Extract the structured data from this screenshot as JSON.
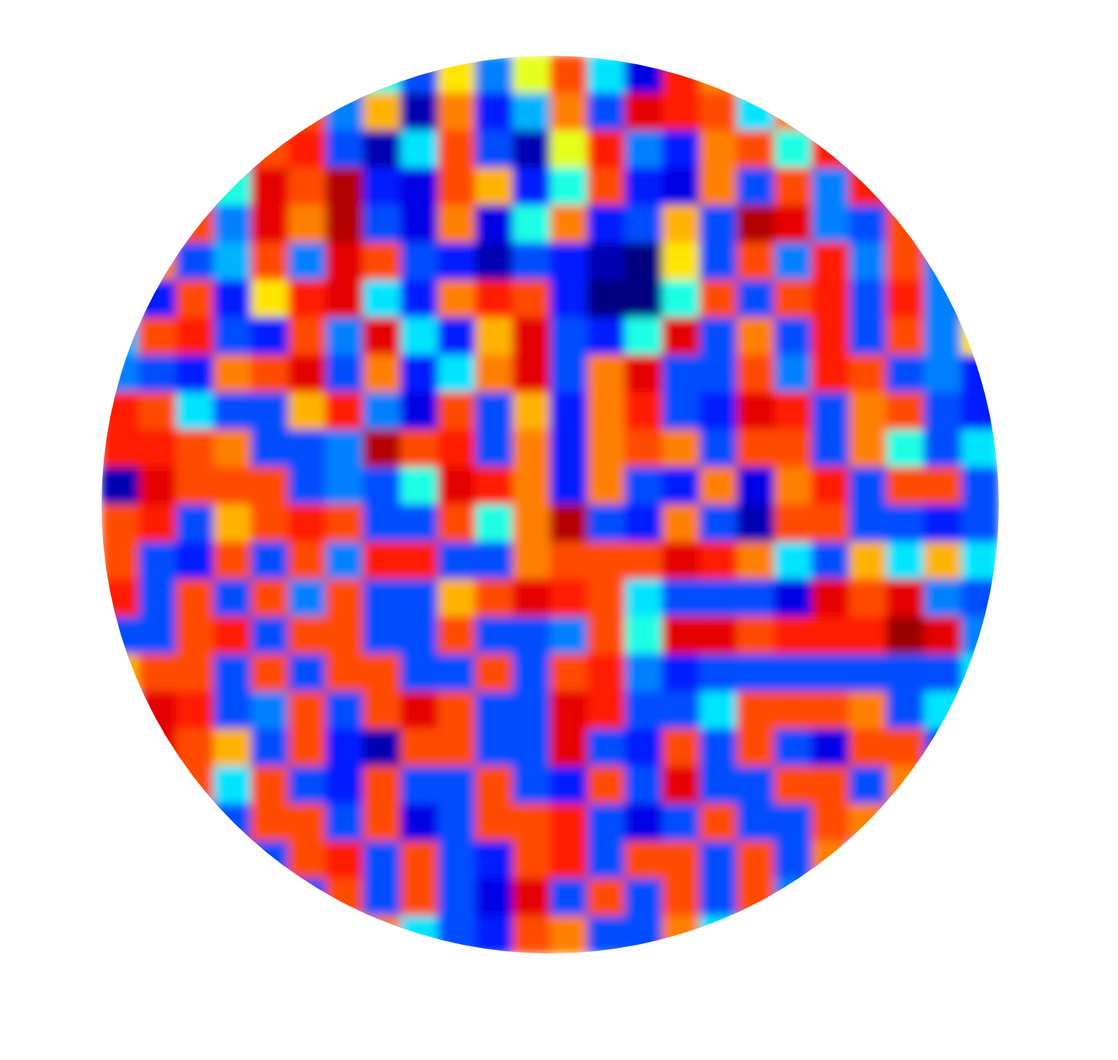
{
  "chart_data": {
    "type": "heatmap",
    "color": "jet",
    "zlim": [
      -1,
      1
    ],
    "cells": [
      [
        null,
        null,
        null,
        null,
        null,
        null,
        0.8,
        -0.2,
        -0.6,
        0.3,
        -0.5,
        0.2,
        0.6,
        -0.3,
        -0.8,
        0.7,
        0.5,
        0.2,
        null,
        null,
        null,
        null,
        null,
        null
      ],
      [
        null,
        null,
        null,
        null,
        null,
        0.6,
        -0.5,
        0.4,
        -0.9,
        0.5,
        -0.7,
        -0.4,
        0.5,
        -0.6,
        0.8,
        0.7,
        0.6,
        -0.3,
        0.5,
        null,
        null,
        null,
        null,
        null
      ],
      [
        null,
        null,
        null,
        -0.5,
        0.6,
        0.7,
        -0.6,
        -0.9,
        -0.3,
        0.6,
        -0.6,
        -0.9,
        0.2,
        0.7,
        -0.5,
        -0.7,
        0.5,
        0.6,
        -0.2,
        0.7,
        0.8,
        null,
        null,
        null
      ],
      [
        null,
        null,
        -0.6,
        -0.2,
        0.8,
        0.6,
        0.9,
        -0.7,
        -0.8,
        0.6,
        0.4,
        -0.7,
        -0.2,
        0.6,
        -0.7,
        -0.8,
        0.5,
        -0.6,
        0.6,
        -0.5,
        0.7,
        0.6,
        null,
        null
      ],
      [
        null,
        -0.7,
        0.6,
        -0.5,
        0.8,
        0.5,
        0.9,
        -0.6,
        -0.8,
        0.5,
        -0.8,
        -0.2,
        0.5,
        -0.7,
        -0.6,
        0.4,
        -0.6,
        0.9,
        0.8,
        -0.5,
        -0.6,
        0.6,
        null,
        null
      ],
      [
        null,
        0.5,
        -0.6,
        -0.4,
        0.6,
        -0.5,
        0.8,
        0.6,
        -0.6,
        -0.7,
        -0.9,
        -0.6,
        -0.7,
        -0.9,
        -1.0,
        0.3,
        -0.6,
        0.6,
        -0.5,
        0.7,
        -0.5,
        0.6,
        -0.5,
        null
      ],
      [
        -0.3,
        -0.7,
        0.6,
        -0.7,
        0.3,
        0.7,
        0.8,
        -0.3,
        -0.7,
        0.5,
        0.7,
        0.6,
        -0.7,
        -1.0,
        -1.0,
        -0.2,
        0.6,
        -0.6,
        0.6,
        0.7,
        -0.6,
        0.7,
        -0.5,
        -0.6
      ],
      [
        -0.4,
        0.6,
        0.7,
        -0.6,
        -0.7,
        0.6,
        -0.5,
        0.8,
        -0.3,
        -0.7,
        0.4,
        0.8,
        -0.6,
        -0.7,
        -0.2,
        0.8,
        -0.6,
        0.5,
        -0.6,
        0.7,
        -0.6,
        0.6,
        -0.5,
        0.3
      ],
      [
        -0.5,
        -0.6,
        -0.7,
        0.5,
        0.6,
        0.8,
        -0.6,
        0.5,
        -0.7,
        -0.3,
        0.5,
        0.8,
        -0.6,
        0.5,
        0.8,
        -0.6,
        -0.6,
        0.6,
        -0.5,
        0.7,
        0.6,
        -0.6,
        -0.5,
        -0.7
      ],
      [
        0.7,
        0.6,
        -0.3,
        -0.6,
        -0.6,
        0.4,
        0.7,
        -0.5,
        -0.8,
        0.6,
        -0.6,
        0.4,
        -0.7,
        0.5,
        0.7,
        -0.6,
        -0.7,
        0.8,
        0.7,
        -0.6,
        0.5,
        0.6,
        -0.6,
        -0.7
      ],
      [
        0.7,
        0.7,
        0.6,
        0.5,
        -0.6,
        -0.6,
        -0.5,
        0.9,
        0.6,
        0.7,
        -0.6,
        0.5,
        -0.7,
        0.5,
        0.6,
        0.5,
        -0.6,
        0.6,
        0.6,
        -0.6,
        0.5,
        -0.2,
        -0.6,
        -0.3
      ],
      [
        -0.9,
        0.8,
        0.6,
        0.6,
        0.6,
        -0.6,
        -0.5,
        -0.6,
        -0.2,
        0.8,
        0.7,
        0.5,
        -0.7,
        0.5,
        -0.6,
        -0.7,
        0.5,
        -0.8,
        0.5,
        0.7,
        -0.6,
        0.6,
        0.6,
        -0.6
      ],
      [
        0.6,
        0.7,
        -0.6,
        0.4,
        0.6,
        0.7,
        0.6,
        -0.6,
        -0.6,
        0.6,
        -0.2,
        0.5,
        0.9,
        -0.6,
        -0.7,
        0.5,
        -0.6,
        -0.9,
        0.6,
        0.6,
        -0.6,
        -0.6,
        -0.7,
        -0.6
      ],
      [
        0.6,
        -0.6,
        -0.7,
        0.6,
        -0.6,
        0.6,
        -0.5,
        0.7,
        0.7,
        -0.6,
        -0.6,
        0.5,
        0.6,
        0.6,
        0.6,
        0.8,
        0.7,
        0.5,
        -0.3,
        -0.6,
        0.4,
        -0.3,
        0.4,
        -0.3
      ],
      [
        0.7,
        -0.6,
        0.6,
        -0.6,
        0.6,
        -0.5,
        0.6,
        -0.6,
        -0.6,
        0.4,
        0.6,
        0.8,
        0.7,
        0.6,
        -0.3,
        -0.6,
        -0.6,
        -0.6,
        -0.8,
        0.8,
        0.6,
        0.8,
        -0.5,
        -0.6
      ],
      [
        -0.6,
        -0.6,
        0.6,
        0.7,
        -0.6,
        0.6,
        0.6,
        -0.6,
        -0.6,
        0.6,
        -0.6,
        -0.6,
        -0.5,
        0.6,
        -0.2,
        0.8,
        0.8,
        0.6,
        0.7,
        0.7,
        0.7,
        0.95,
        0.8,
        -0.5
      ],
      [
        0.4,
        0.6,
        0.6,
        -0.6,
        0.6,
        -0.6,
        0.6,
        0.6,
        -0.6,
        -0.6,
        0.6,
        -0.6,
        0.6,
        0.7,
        -0.5,
        -0.7,
        -0.6,
        -0.6,
        -0.6,
        -0.6,
        -0.6,
        -0.6,
        -0.6,
        -0.3
      ],
      [
        -0.3,
        0.8,
        0.7,
        -0.6,
        -0.5,
        0.6,
        -0.6,
        0.6,
        0.8,
        0.6,
        -0.6,
        -0.6,
        0.8,
        0.7,
        -0.6,
        -0.6,
        -0.3,
        0.6,
        0.6,
        0.6,
        0.5,
        -0.6,
        -0.3,
        -0.3
      ],
      [
        null,
        0.8,
        0.6,
        0.4,
        -0.6,
        0.6,
        -0.7,
        -0.9,
        0.6,
        0.6,
        -0.6,
        -0.6,
        0.8,
        -0.6,
        -0.7,
        0.6,
        -0.6,
        0.6,
        -0.6,
        -0.8,
        0.6,
        0.6,
        -0.6,
        null
      ],
      [
        null,
        -0.6,
        0.6,
        -0.3,
        0.6,
        -0.6,
        -0.7,
        0.6,
        -0.6,
        -0.6,
        0.6,
        -0.6,
        -0.7,
        0.6,
        -0.6,
        0.8,
        -0.6,
        -0.6,
        0.6,
        0.6,
        -0.6,
        0.5,
        null,
        null
      ],
      [
        null,
        null,
        -0.6,
        -0.6,
        0.6,
        0.6,
        -0.6,
        0.6,
        -0.8,
        -0.6,
        0.6,
        0.6,
        0.7,
        -0.6,
        -0.8,
        -0.6,
        0.6,
        -0.6,
        -0.6,
        0.6,
        0.5,
        -0.5,
        null,
        null
      ],
      [
        null,
        null,
        null,
        0.6,
        -0.6,
        0.6,
        0.7,
        -0.6,
        0.6,
        -0.6,
        -0.7,
        0.6,
        0.7,
        -0.6,
        0.6,
        0.6,
        -0.6,
        0.6,
        -0.6,
        0.5,
        -0.5,
        null,
        null,
        null
      ],
      [
        null,
        null,
        null,
        null,
        null,
        -0.6,
        0.6,
        -0.6,
        0.6,
        -0.6,
        -0.8,
        0.8,
        -0.6,
        0.6,
        -0.6,
        0.6,
        -0.6,
        0.6,
        -0.5,
        null,
        null,
        null,
        null,
        null
      ],
      [
        null,
        null,
        null,
        null,
        null,
        null,
        -0.3,
        0.5,
        -0.3,
        -0.6,
        -0.7,
        0.6,
        0.5,
        -0.6,
        -0.6,
        0.5,
        -0.3,
        -0.5,
        null,
        null,
        null,
        null,
        null,
        null
      ]
    ]
  }
}
